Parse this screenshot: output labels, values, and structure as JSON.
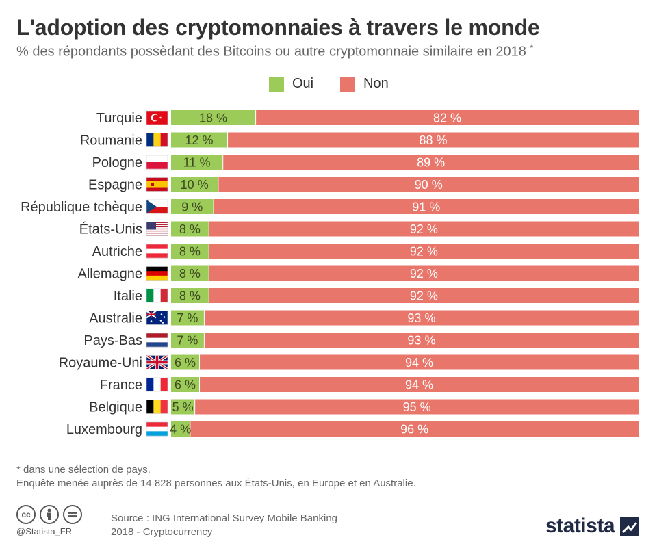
{
  "title": "L'adoption des cryptomonnaies à travers le monde",
  "subtitle": "% des répondants possèdant des Bitcoins ou autre cryptomonnaie similaire en 2018",
  "subtitle_mark": "*",
  "colors": {
    "oui": "#9dcb5a",
    "non": "#e8766a",
    "background": "#ffffff"
  },
  "legend": [
    {
      "label": "Oui",
      "color": "#9dcb5a"
    },
    {
      "label": "Non",
      "color": "#e8766a"
    }
  ],
  "chart_data": {
    "type": "bar",
    "orientation": "horizontal",
    "stacked": true,
    "unit": "%",
    "categories": [
      "Turquie",
      "Roumanie",
      "Pologne",
      "Espagne",
      "République tchèque",
      "États-Unis",
      "Autriche",
      "Allemagne",
      "Italie",
      "Australie",
      "Pays-Bas",
      "Royaume-Uni",
      "France",
      "Belgique",
      "Luxembourg"
    ],
    "flag_icons": [
      "turkey-flag-icon",
      "romania-flag-icon",
      "poland-flag-icon",
      "spain-flag-icon",
      "czech-flag-icon",
      "usa-flag-icon",
      "austria-flag-icon",
      "germany-flag-icon",
      "italy-flag-icon",
      "australia-flag-icon",
      "netherlands-flag-icon",
      "uk-flag-icon",
      "france-flag-icon",
      "belgium-flag-icon",
      "luxembourg-flag-icon"
    ],
    "series": [
      {
        "name": "Oui",
        "color": "#9dcb5a",
        "values": [
          18,
          12,
          11,
          10,
          9,
          8,
          8,
          8,
          8,
          7,
          7,
          6,
          6,
          5,
          4
        ]
      },
      {
        "name": "Non",
        "color": "#e8766a",
        "values": [
          82,
          88,
          89,
          90,
          91,
          92,
          92,
          92,
          92,
          93,
          93,
          94,
          94,
          95,
          96
        ]
      }
    ],
    "data_labels": {
      "Oui": [
        "18 %",
        "12 %",
        "11 %",
        "10 %",
        "9 %",
        "8 %",
        "8 %",
        "8 %",
        "8 %",
        "7 %",
        "7 %",
        "6 %",
        "6 %",
        "5 %",
        "4 %"
      ],
      "Non": [
        "82 %",
        "88 %",
        "89 %",
        "90 %",
        "91 %",
        "92 %",
        "92 %",
        "92 %",
        "92 %",
        "93 %",
        "93 %",
        "94 %",
        "94 %",
        "95 %",
        "96 %"
      ]
    },
    "xlim": [
      0,
      100
    ],
    "grid": false,
    "legend_position": "top-center"
  },
  "footnote": {
    "line1": "* dans une sélection de pays.",
    "line2": "Enquête menée auprès de 14 828 personnes aux États-Unis, en Europe et en Australie."
  },
  "license_icons": [
    "cc-icon",
    "attribution-icon",
    "no-derivatives-icon"
  ],
  "handle": "@Statista_FR",
  "source": {
    "line1": "Source : ING International Survey Mobile Banking",
    "line2": "2018 - Cryptocurrency"
  },
  "brand": "statista"
}
